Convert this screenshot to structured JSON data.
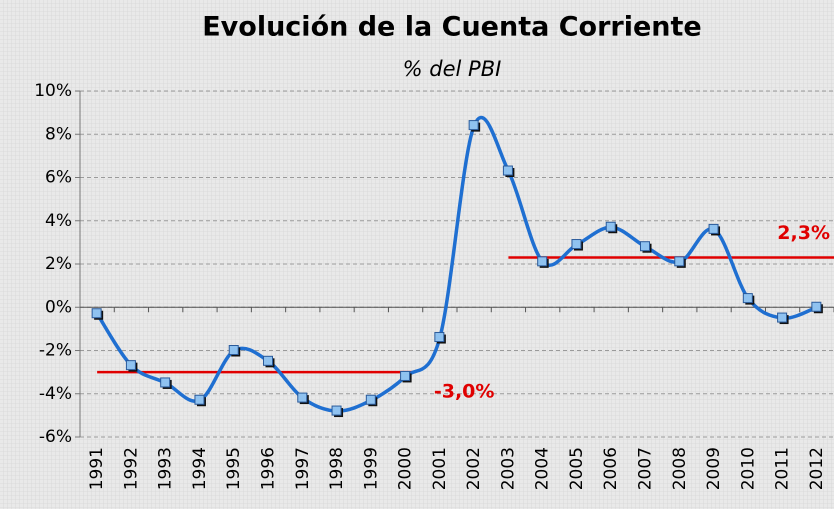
{
  "chart_data": {
    "type": "line",
    "title": "Evolución de la Cuenta Corriente",
    "subtitle": "% del PBI",
    "categories": [
      "1991",
      "1992",
      "1993",
      "1994",
      "1995",
      "1996",
      "1997",
      "1998",
      "1999",
      "2000",
      "2001",
      "2002",
      "2003",
      "2004",
      "2005",
      "2006",
      "2007",
      "2008",
      "2009",
      "2010",
      "2011",
      "2012"
    ],
    "series": [
      {
        "name": "Cuenta Corriente",
        "color": "#1f6fd1",
        "values": [
          -0.3,
          -2.7,
          -3.5,
          -4.3,
          -2.0,
          -2.5,
          -4.2,
          -4.8,
          -4.3,
          -3.2,
          -1.4,
          8.4,
          6.3,
          2.1,
          2.9,
          3.7,
          2.8,
          2.1,
          3.6,
          0.4,
          -0.5,
          0.0
        ]
      }
    ],
    "reference_lines": [
      {
        "value": -3.0,
        "label": "-3,0%",
        "from": "1991",
        "to": "2000",
        "color": "#e00000"
      },
      {
        "value": 2.3,
        "label": "2,3%",
        "from": "2003",
        "to": "2012",
        "color": "#e00000"
      }
    ],
    "ylim": [
      -6,
      10
    ],
    "yticks": [
      {
        "value": -6,
        "label": "-6%"
      },
      {
        "value": -4,
        "label": "-4%"
      },
      {
        "value": -2,
        "label": "-2%"
      },
      {
        "value": 0,
        "label": "0%"
      },
      {
        "value": 2,
        "label": "2%"
      },
      {
        "value": 4,
        "label": "4%"
      },
      {
        "value": 6,
        "label": "6%"
      },
      {
        "value": 8,
        "label": "8%"
      },
      {
        "value": 10,
        "label": "10%"
      }
    ],
    "grid": true
  }
}
